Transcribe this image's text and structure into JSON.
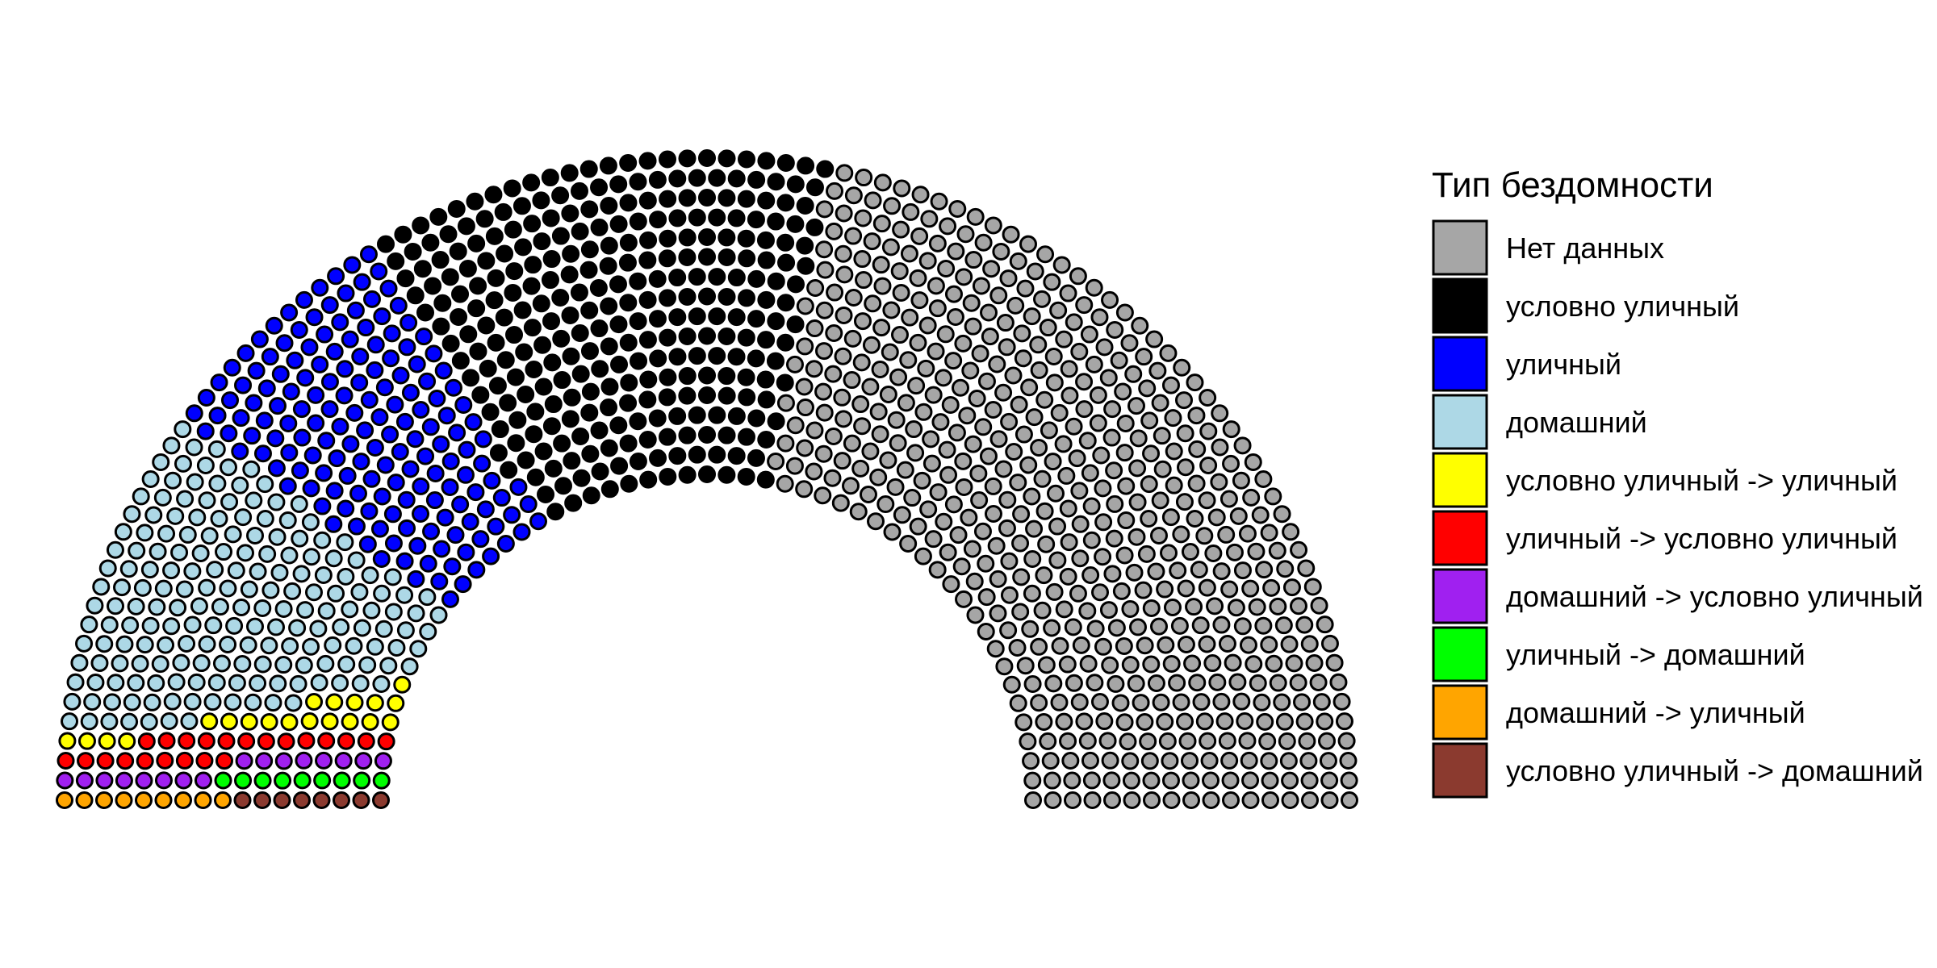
{
  "chart_data": {
    "type": "parliament",
    "title": "",
    "legend": {
      "title": "Тип бездомности",
      "placement": "right"
    },
    "series": [
      {
        "name": "Нет данных",
        "color": "#A6A6A6"
      },
      {
        "name": "условно уличный",
        "color": "#000000"
      },
      {
        "name": "уличный",
        "color": "#0000FF"
      },
      {
        "name": "домашний",
        "color": "#ADD8E6"
      },
      {
        "name": "условно уличный -> уличный",
        "color": "#FFFF00"
      },
      {
        "name": "уличный -> условно уличный",
        "color": "#FF0000"
      },
      {
        "name": "домашний -> условно уличный",
        "color": "#A020F0"
      },
      {
        "name": "уличный -> домашний",
        "color": "#00FF00"
      },
      {
        "name": "домашний -> уличный",
        "color": "#FFA500"
      },
      {
        "name": "условно уличный -> домашний",
        "color": "#8B3A2F"
      }
    ],
    "blocks": [
      {
        "series": 9,
        "type": "row",
        "row": 0,
        "from": 0,
        "to": 7
      },
      {
        "series": 8,
        "type": "row",
        "row": 0,
        "from": 8,
        "to": 16
      },
      {
        "series": 7,
        "type": "row",
        "row": 1,
        "from": 0,
        "to": 8
      },
      {
        "series": 6,
        "type": "row",
        "row": 1,
        "from": 9,
        "to": 16
      },
      {
        "series": 6,
        "type": "row",
        "row": 2,
        "from": 0,
        "to": 7
      },
      {
        "series": 5,
        "type": "row",
        "row": 2,
        "from": 8,
        "to": 16
      },
      {
        "series": 5,
        "type": "row",
        "row": 3,
        "from": 0,
        "to": 12
      },
      {
        "series": 4,
        "type": "row",
        "row": 3,
        "from": 13,
        "to": 16
      },
      {
        "series": 4,
        "type": "row",
        "row": 4,
        "from": 0,
        "to": 9
      },
      {
        "series": 4,
        "type": "row",
        "row": 5,
        "from": 0,
        "to": 4
      },
      {
        "series": 4,
        "type": "row",
        "row": 6,
        "from": 0,
        "to": 0
      },
      {
        "series": 3,
        "type": "rest",
        "maxAngle": 36
      },
      {
        "series": 2,
        "type": "rest",
        "maxAngle": 59
      },
      {
        "series": 1,
        "type": "rest",
        "maxAngle": 101
      },
      {
        "series": 0,
        "type": "rest",
        "maxAngle": 180
      }
    ]
  }
}
